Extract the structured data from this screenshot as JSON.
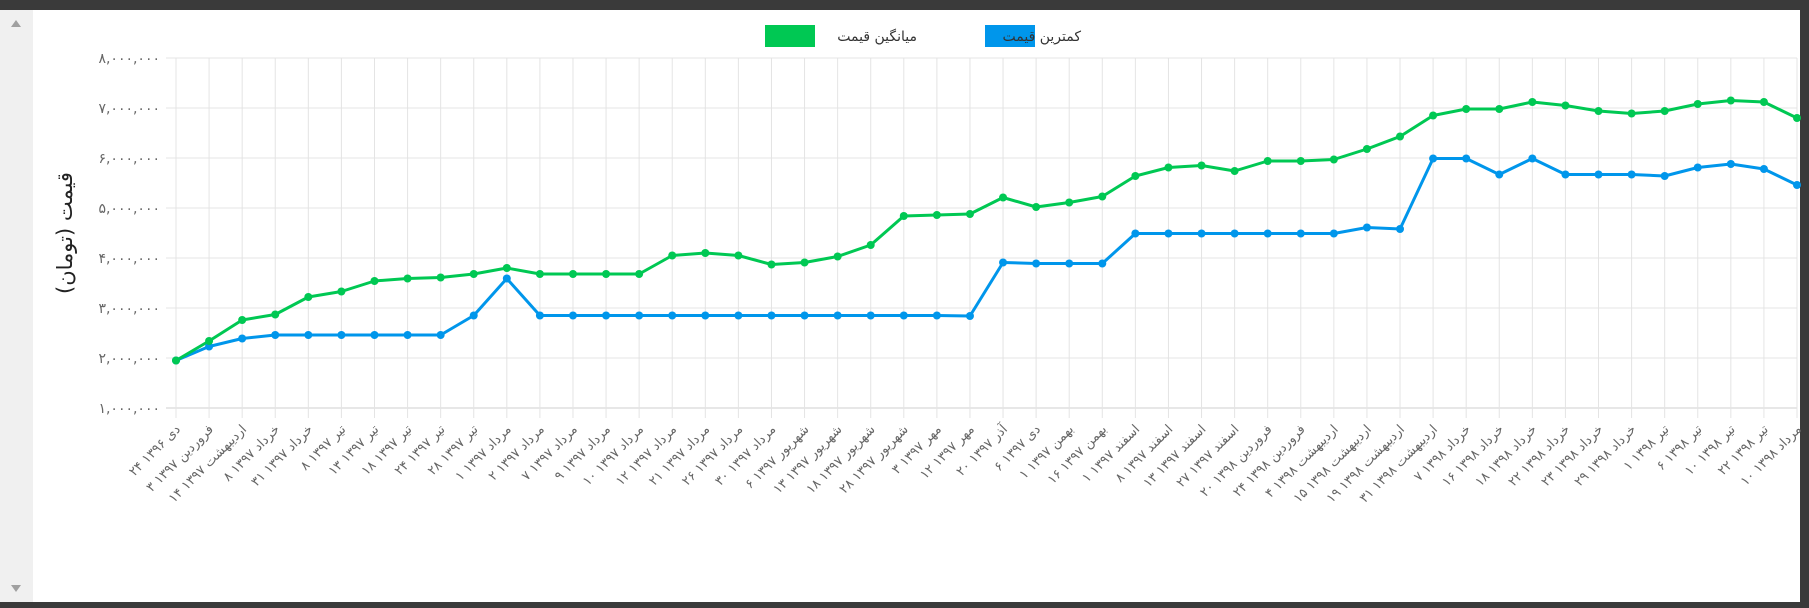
{
  "chart_data": {
    "type": "line",
    "legend_position": "top",
    "grid": true,
    "ylabel": "قیمت (تومان)",
    "ylim": [
      1000000,
      8000000
    ],
    "y_ticks": [
      "۱,۰۰۰,۰۰۰",
      "۲,۰۰۰,۰۰۰",
      "۳,۰۰۰,۰۰۰",
      "۴,۰۰۰,۰۰۰",
      "۵,۰۰۰,۰۰۰",
      "۶,۰۰۰,۰۰۰",
      "۷,۰۰۰,۰۰۰",
      "۸,۰۰۰,۰۰۰"
    ],
    "categories": [
      "۲۴ دی ۱۳۹۶",
      "۳ فروردین ۱۳۹۷",
      "۱۴ اردیبهشت ۱۳۹۷",
      "۸ خرداد ۱۳۹۷",
      "۳۱ خرداد ۱۳۹۷",
      "۸ تیر ۱۳۹۷",
      "۱۳ تیر ۱۳۹۷",
      "۱۸ تیر ۱۳۹۷",
      "۲۴ تیر ۱۳۹۷",
      "۲۸ تیر ۱۳۹۷",
      "۱ مرداد ۱۳۹۷",
      "۲ مرداد ۱۳۹۷",
      "۷ مرداد ۱۳۹۷",
      "۹ مرداد ۱۳۹۷",
      "۱۰ مرداد ۱۳۹۷",
      "۱۲ مرداد ۱۳۹۷",
      "۲۱ مرداد ۱۳۹۷",
      "۲۶ مرداد ۱۳۹۷",
      "۳۰ مرداد ۱۳۹۷",
      "۶ شهریور ۱۳۹۷",
      "۱۳ شهریور ۱۳۹۷",
      "۱۸ شهریور ۱۳۹۷",
      "۲۸ شهریور ۱۳۹۷",
      "۳ مهر ۱۳۹۷",
      "۱۲ مهر ۱۳۹۷",
      "۲۰ آذر ۱۳۹۷",
      "۶ دی ۱۳۹۷",
      "۱ بهمن ۱۳۹۷",
      "۱۶ بهمن ۱۳۹۷",
      "۱ اسفند ۱۳۹۷",
      "۸ اسفند ۱۳۹۷",
      "۱۳ اسفند ۱۳۹۷",
      "۲۷ اسفند ۱۳۹۷",
      "۲۰ فروردین ۱۳۹۸",
      "۲۴ فروردین ۱۳۹۸",
      "۴ اردیبهشت ۱۳۹۸",
      "۱۵ اردیبهشت ۱۳۹۸",
      "۱۹ اردیبهشت ۱۳۹۸",
      "۳۱ اردیبهشت ۱۳۹۸",
      "۷ خرداد ۱۳۹۸",
      "۱۶ خرداد ۱۳۹۸",
      "۱۸ خرداد ۱۳۹۸",
      "۲۲ خرداد ۱۳۹۸",
      "۲۳ خرداد ۱۳۹۸",
      "۲۹ خرداد ۱۳۹۸",
      "۱ تیر ۱۳۹۸",
      "۶ تیر ۱۳۹۸",
      "۱۰ تیر ۱۳۹۸",
      "۲۲ تیر ۱۳۹۸",
      "۱۰ مرداد ۱۳۹۸"
    ],
    "series": [
      {
        "name": "کمترین قیمت",
        "color": "#0096eb",
        "values": [
          1950000,
          2230000,
          2390000,
          2460000,
          2460000,
          2460000,
          2460000,
          2460000,
          2460000,
          2850000,
          3590000,
          2850000,
          2850000,
          2850000,
          2850000,
          2850000,
          2850000,
          2850000,
          2850000,
          2850000,
          2850000,
          2850000,
          2850000,
          2850000,
          2840000,
          3910000,
          3890000,
          3890000,
          3890000,
          4490000,
          4490000,
          4490000,
          4490000,
          4490000,
          4490000,
          4490000,
          4610000,
          4580000,
          5990000,
          5990000,
          5670000,
          5990000,
          5670000,
          5670000,
          5670000,
          5640000,
          5810000,
          5880000,
          5780000,
          5460000
        ]
      },
      {
        "name": "میانگین قیمت",
        "color": "#00c853",
        "values": [
          1950000,
          2340000,
          2760000,
          2870000,
          3220000,
          3330000,
          3540000,
          3590000,
          3610000,
          3680000,
          3800000,
          3680000,
          3680000,
          3680000,
          3680000,
          4050000,
          4100000,
          4050000,
          3870000,
          3910000,
          4030000,
          4260000,
          4840000,
          4860000,
          4880000,
          5210000,
          5020000,
          5110000,
          5230000,
          5640000,
          5810000,
          5850000,
          5740000,
          5940000,
          5940000,
          5970000,
          6180000,
          6430000,
          6850000,
          6980000,
          6980000,
          7120000,
          7050000,
          6940000,
          6890000,
          6940000,
          7080000,
          7150000,
          7120000,
          6800000
        ]
      }
    ]
  }
}
